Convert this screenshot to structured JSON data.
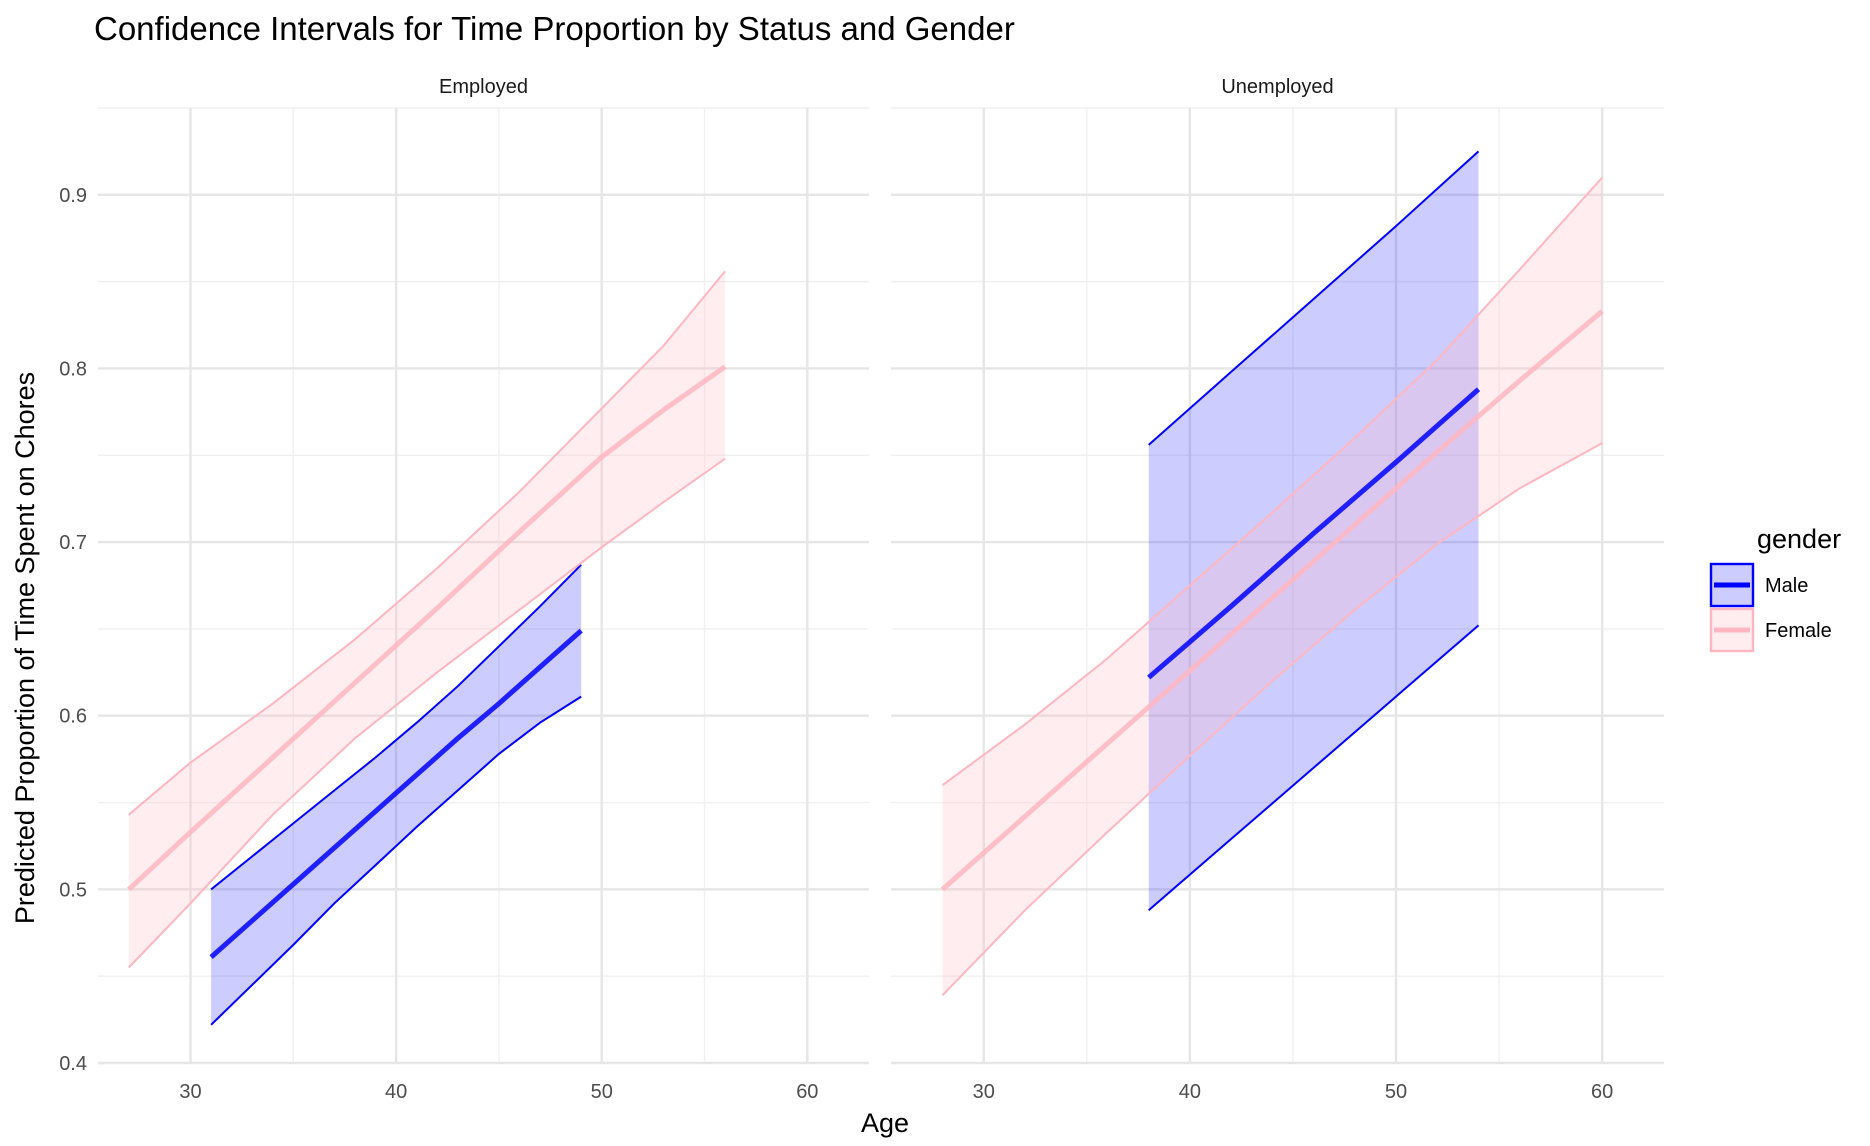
{
  "chart_data": {
    "type": "line",
    "title": "Confidence Intervals for Time Proportion by Status and Gender",
    "xlabel": "Age",
    "ylabel": "Predicted Proportion of Time Spent on Chores",
    "xlim": [
      25.5,
      63
    ],
    "ylim": [
      0.4,
      0.95
    ],
    "x_ticks": [
      30,
      40,
      50,
      60
    ],
    "y_ticks": [
      0.4,
      0.5,
      0.6,
      0.7,
      0.8,
      0.9
    ],
    "grid": true,
    "legend": {
      "title": "gender",
      "placement": "right",
      "entries": [
        {
          "label": "Male",
          "color": "#0000ff"
        },
        {
          "label": "Female",
          "color": "#ffb6c1"
        }
      ]
    },
    "panels": [
      {
        "label": "Employed",
        "series": [
          {
            "name": "Male",
            "color": "#0000ff",
            "x": [
              31,
              35,
              37,
              39,
              41,
              43,
              45,
              47,
              49
            ],
            "fit": [
              0.461,
              0.503,
              0.524,
              0.545,
              0.566,
              0.587,
              0.607,
              0.628,
              0.649
            ],
            "lower": [
              0.422,
              0.468,
              0.492,
              0.514,
              0.536,
              0.557,
              0.578,
              0.596,
              0.611
            ],
            "upper": [
              0.5,
              0.538,
              0.557,
              0.576,
              0.596,
              0.617,
              0.64,
              0.663,
              0.687
            ]
          },
          {
            "name": "Female",
            "color": "#ffb6c1",
            "x": [
              27,
              30,
              34,
              38,
              42,
              46,
              50,
              53,
              56
            ],
            "fit": [
              0.5,
              0.533,
              0.576,
              0.619,
              0.662,
              0.706,
              0.749,
              0.776,
              0.801
            ],
            "lower": [
              0.455,
              0.492,
              0.543,
              0.587,
              0.625,
              0.661,
              0.697,
              0.723,
              0.748
            ],
            "upper": [
              0.543,
              0.573,
              0.607,
              0.644,
              0.685,
              0.729,
              0.777,
              0.813,
              0.856
            ]
          }
        ]
      },
      {
        "label": "Unemployed",
        "series": [
          {
            "name": "Male",
            "color": "#0000ff",
            "x": [
              38,
              42,
              46,
              50,
              54
            ],
            "fit": [
              0.622,
              0.663,
              0.705,
              0.746,
              0.788
            ],
            "lower": [
              0.488,
              0.529,
              0.57,
              0.611,
              0.652
            ],
            "upper": [
              0.756,
              0.798,
              0.84,
              0.882,
              0.925
            ]
          },
          {
            "name": "Female",
            "color": "#ffb6c1",
            "x": [
              28,
              32,
              36,
              40,
              44,
              48,
              52,
              56,
              60
            ],
            "fit": [
              0.5,
              0.542,
              0.584,
              0.626,
              0.668,
              0.71,
              0.752,
              0.793,
              0.833
            ],
            "lower": [
              0.439,
              0.488,
              0.533,
              0.577,
              0.62,
              0.661,
              0.699,
              0.731,
              0.757
            ],
            "upper": [
              0.56,
              0.595,
              0.633,
              0.675,
              0.717,
              0.76,
              0.805,
              0.857,
              0.91
            ]
          }
        ]
      }
    ]
  }
}
